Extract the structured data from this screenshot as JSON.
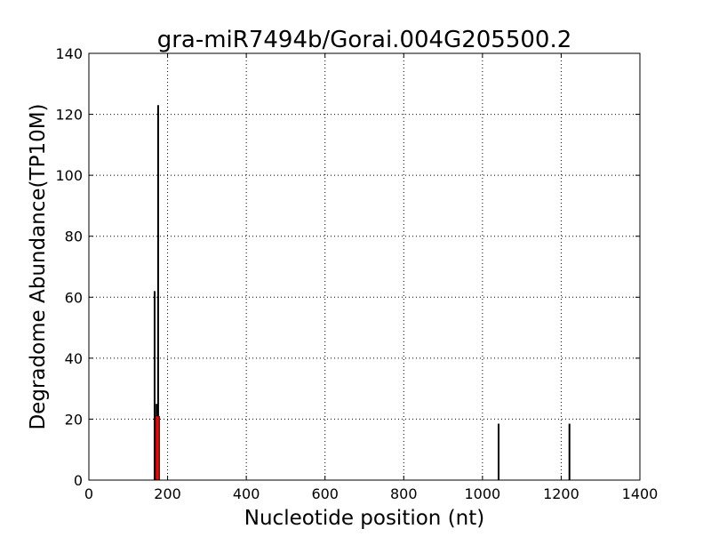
{
  "chart_data": {
    "type": "bar",
    "title": "gra-miR7494b/Gorai.004G205500.2",
    "xlabel": "Nucleotide position (nt)",
    "ylabel": "Degradome Abundance(TP10M)",
    "xlim": [
      0,
      1400
    ],
    "ylim": [
      0,
      140
    ],
    "xticks": [
      0,
      200,
      400,
      600,
      800,
      1000,
      1200,
      1400
    ],
    "yticks": [
      0,
      20,
      40,
      60,
      80,
      100,
      120,
      140
    ],
    "grid": true,
    "series": [
      {
        "color": "#000000",
        "x": [
          167,
          172,
          176,
          178,
          1041,
          1221
        ],
        "values": [
          62,
          25,
          123,
          21,
          18.5,
          18.5
        ]
      },
      {
        "color": "#ff0000",
        "x": [
          174
        ],
        "values": [
          21
        ]
      }
    ]
  }
}
